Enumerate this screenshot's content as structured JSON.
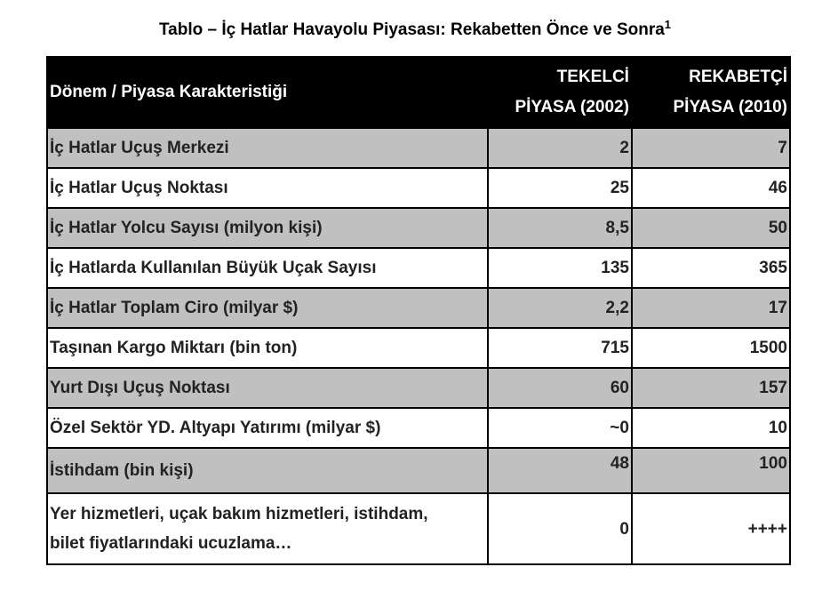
{
  "title": "Tablo – İç  Hatlar Havayolu Piyasası: Rekabetten Önce ve Sonra",
  "title_sup": "1",
  "colors": {
    "header_bg": "#000000",
    "stripe": "#c0c0c0"
  },
  "headers": {
    "label": "Dönem / Piyasa Karakteristiği",
    "col1_line1": "TEKELCİ",
    "col1_line2": "PİYASA (2002)",
    "col2_line1": "REKABETÇİ",
    "col2_line2": "PİYASA (2010)"
  },
  "rows": [
    {
      "label": "İç Hatlar Uçuş Merkezi",
      "a": "2",
      "b": "7"
    },
    {
      "label": "İç Hatlar Uçuş Noktası",
      "a": "25",
      "b": "46"
    },
    {
      "label": "İç Hatlar Yolcu Sayısı (milyon kişi)",
      "a": "8,5",
      "b": "50"
    },
    {
      "label": "İç Hatlarda Kullanılan Büyük Uçak Sayısı",
      "a": "135",
      "b": "365"
    },
    {
      "label": "İç Hatlar Toplam Ciro (milyar $)",
      "a": "2,2",
      "b": "17"
    },
    {
      "label": "Taşınan Kargo Miktarı (bin ton)",
      "a": "715",
      "b": "1500"
    },
    {
      "label": "Yurt Dışı Uçuş Noktası",
      "a": "60",
      "b": "157"
    },
    {
      "label": "Özel Sektör YD. Altyapı Yatırımı (milyar $)",
      "a": "~0",
      "b": "10"
    },
    {
      "label": "İstihdam (bin kişi)",
      "a": "48",
      "b": "100"
    },
    {
      "label_line1": "Yer hizmetleri, uçak bakım hizmetleri, istihdam,",
      "label_line2": "bilet fiyatlarındaki ucuzlama…",
      "a": "0",
      "b": "++++"
    }
  ]
}
